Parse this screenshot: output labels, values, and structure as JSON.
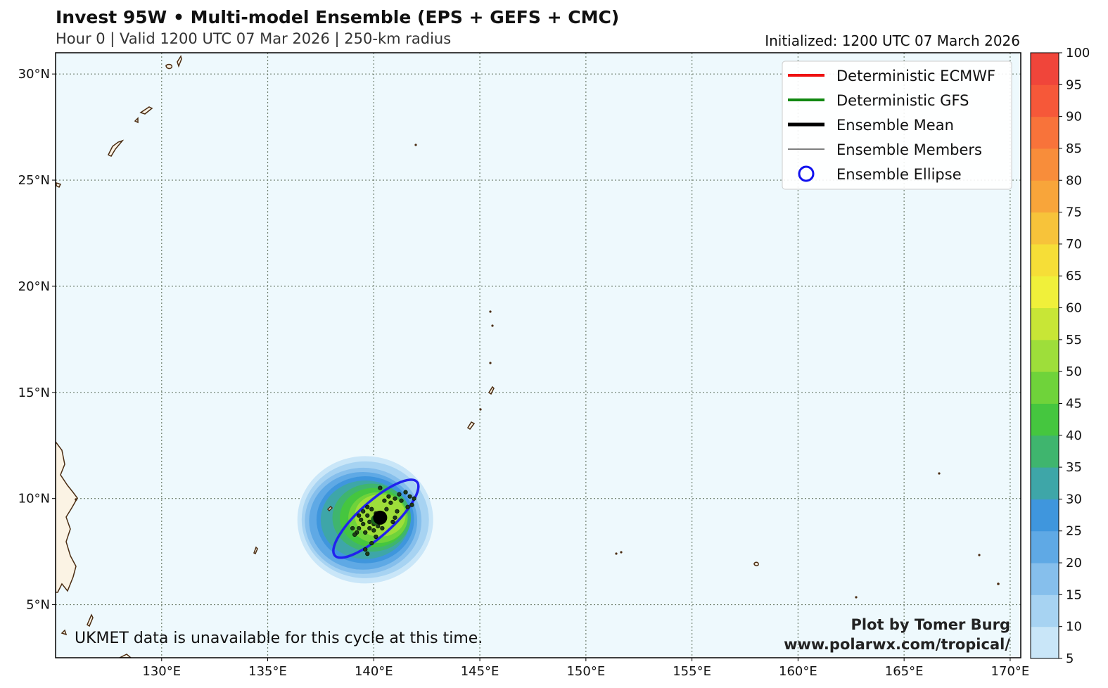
{
  "header": {
    "title": "Invest 95W • Multi-model Ensemble (EPS + GEFS + CMC)",
    "subtitle": "Hour 0 | Valid 1200 UTC 07 Mar 2026 | 250-km radius",
    "initialized": "Initialized: 1200 UTC 07 March 2026"
  },
  "map": {
    "ocean_color": "#eef9fd",
    "land_color": "#fbf3e4",
    "coast_color": "#4a2c12",
    "lon_range": [
      125.0,
      170.5
    ],
    "lat_range": [
      2.5,
      31.0
    ],
    "lat_ticks": [
      {
        "value": 30,
        "label": "30°N"
      },
      {
        "value": 25,
        "label": "25°N"
      },
      {
        "value": 20,
        "label": "20°N"
      },
      {
        "value": 15,
        "label": "15°N"
      },
      {
        "value": 10,
        "label": "10°N"
      },
      {
        "value": 5,
        "label": "5°N"
      }
    ],
    "lon_ticks": [
      {
        "value": 130,
        "label": "130°E"
      },
      {
        "value": 135,
        "label": "135°E"
      },
      {
        "value": 140,
        "label": "140°E"
      },
      {
        "value": 145,
        "label": "145°E"
      },
      {
        "value": 150,
        "label": "150°E"
      },
      {
        "value": 155,
        "label": "155°E"
      },
      {
        "value": 160,
        "label": "160°E"
      },
      {
        "value": 165,
        "label": "165°E"
      },
      {
        "value": 170,
        "label": "170°E"
      }
    ]
  },
  "legend": {
    "items": [
      {
        "label": "Deterministic ECMWF",
        "symbol": "line",
        "color": "#ee1111",
        "width": 4
      },
      {
        "label": "Deterministic GFS",
        "symbol": "line",
        "color": "#118811",
        "width": 4
      },
      {
        "label": "Ensemble Mean",
        "symbol": "line",
        "color": "#000000",
        "width": 5
      },
      {
        "label": "Ensemble Members",
        "symbol": "line",
        "color": "#000000",
        "width": 1
      },
      {
        "label": "Ensemble Ellipse",
        "symbol": "circle",
        "color": "#1111ee",
        "width": 3
      }
    ]
  },
  "storm": {
    "center": {
      "lon": 140.3,
      "lat": 9.1
    },
    "ellipse": {
      "lon": 140.1,
      "lat": 9.05,
      "semi_major_deg": 2.6,
      "semi_minor_deg": 0.8,
      "rotation_deg": -42,
      "color": "#2222ee"
    },
    "probability_contours": [
      {
        "value": 5,
        "lon": 139.6,
        "lat": 9.0,
        "rx": 3.2,
        "ry": 3.0
      },
      {
        "value": 10,
        "lon": 139.6,
        "lat": 9.0,
        "rx": 3.0,
        "ry": 2.75
      },
      {
        "value": 15,
        "lon": 139.5,
        "lat": 8.95,
        "rx": 2.75,
        "ry": 2.5
      },
      {
        "value": 20,
        "lon": 139.5,
        "lat": 8.95,
        "rx": 2.55,
        "ry": 2.3
      },
      {
        "value": 25,
        "lon": 139.6,
        "lat": 9.0,
        "rx": 2.3,
        "ry": 2.05
      },
      {
        "value": 30,
        "lon": 139.6,
        "lat": 9.0,
        "rx": 2.1,
        "ry": 1.85
      },
      {
        "value": 35,
        "lon": 139.9,
        "lat": 9.1,
        "rx": 1.85,
        "ry": 1.6
      },
      {
        "value": 40,
        "lon": 140.0,
        "lat": 9.1,
        "rx": 1.6,
        "ry": 1.4
      },
      {
        "value": 45,
        "lon": 140.2,
        "lat": 9.1,
        "rx": 1.4,
        "ry": 1.2
      },
      {
        "value": 50,
        "lon": 140.3,
        "lat": 9.2,
        "rx": 1.2,
        "ry": 1.0
      }
    ],
    "members": [
      [
        139.6,
        8.4
      ],
      [
        139.8,
        8.6
      ],
      [
        140.0,
        8.8
      ],
      [
        140.3,
        9.0
      ],
      [
        140.1,
        9.3
      ],
      [
        139.9,
        9.5
      ],
      [
        139.7,
        9.6
      ],
      [
        139.4,
        9.0
      ],
      [
        139.5,
        8.8
      ],
      [
        139.3,
        8.6
      ],
      [
        139.2,
        8.4
      ],
      [
        139.1,
        8.3
      ],
      [
        139.0,
        8.6
      ],
      [
        139.3,
        9.2
      ],
      [
        139.7,
        9.2
      ],
      [
        140.6,
        9.5
      ],
      [
        140.8,
        9.8
      ],
      [
        141.0,
        10.0
      ],
      [
        141.2,
        10.2
      ],
      [
        141.5,
        10.3
      ],
      [
        141.7,
        10.1
      ],
      [
        141.9,
        10.0
      ],
      [
        141.8,
        9.7
      ],
      [
        141.6,
        9.6
      ],
      [
        140.7,
        10.1
      ],
      [
        140.5,
        9.9
      ],
      [
        140.3,
        10.5
      ],
      [
        139.6,
        7.6
      ],
      [
        139.7,
        7.4
      ],
      [
        139.9,
        7.9
      ],
      [
        140.1,
        8.2
      ],
      [
        140.4,
        8.6
      ],
      [
        140.0,
        8.5
      ],
      [
        139.8,
        8.9
      ],
      [
        140.2,
        8.7
      ],
      [
        139.5,
        9.4
      ],
      [
        141.1,
        9.4
      ],
      [
        141.3,
        9.9
      ],
      [
        141.0,
        9.1
      ],
      [
        140.9,
        8.9
      ]
    ]
  },
  "colorbar": {
    "levels": [
      5,
      10,
      15,
      20,
      25,
      30,
      35,
      40,
      45,
      50,
      55,
      60,
      65,
      70,
      75,
      80,
      85,
      90,
      95,
      100
    ],
    "labels": [
      "5",
      "10",
      "15",
      "20",
      "25",
      "30",
      "35",
      "40",
      "45",
      "50",
      "55",
      "60",
      "65",
      "70",
      "75",
      "80",
      "85",
      "90",
      "95",
      "100"
    ],
    "colors": [
      "#c9e6f8",
      "#a7d3f2",
      "#86bfec",
      "#5fa9e5",
      "#3f96dd",
      "#3ea6a8",
      "#3fb56e",
      "#45c63f",
      "#6fd33a",
      "#9ede3a",
      "#c8e636",
      "#f0f03a",
      "#f6de37",
      "#f7c33a",
      "#f8a53a",
      "#f88d3a",
      "#f8733a",
      "#f65839",
      "#f0453a"
    ]
  },
  "note": "UKMET data is unavailable for this cycle at this time.",
  "credit": {
    "line1": "Plot by Tomer Burg",
    "line2": "www.polarwx.com/tropical/"
  }
}
